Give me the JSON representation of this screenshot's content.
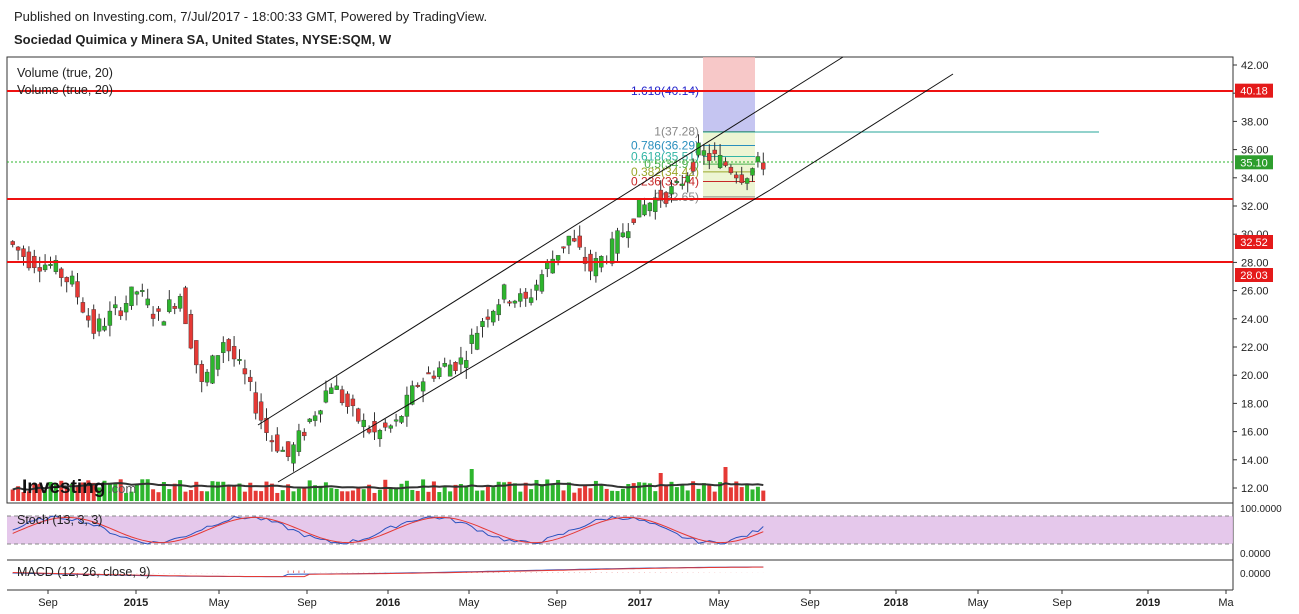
{
  "header": {
    "published": "Published on Investing.com, 7/Jul/2017 - 18:00:33 GMT, Powered by TradingView.",
    "symbol_title": "Sociedad Quimica y Minera SA, United States, NYSE:SQM, W"
  },
  "indicators": {
    "volume_label_1": "Volume (true, 20)",
    "volume_label_2": "Volume (true, 20)",
    "stoch_label": "Stoch (13, 3, 3)",
    "macd_label": "MACD (12, 26, close, 9)",
    "stoch_axis": [
      "100.0000",
      "0.0000"
    ],
    "macd_axis": "0.0000"
  },
  "watermark": {
    "brand": "Investing",
    "suffix": ".com"
  },
  "price_axis": [
    "42.00",
    "40.00",
    "38.00",
    "36.00",
    "34.00",
    "32.00",
    "30.00",
    "28.00",
    "26.00",
    "24.00",
    "22.00",
    "20.00",
    "18.00",
    "16.00",
    "14.00",
    "12.00"
  ],
  "time_axis": [
    "Sep",
    "2015",
    "May",
    "Sep",
    "2016",
    "May",
    "Sep",
    "2017",
    "May",
    "Sep",
    "2018",
    "May",
    "Sep",
    "2019",
    "Ma"
  ],
  "price_tags": [
    {
      "text": "40.18",
      "value": 40.18,
      "color": "#e41a1a"
    },
    {
      "text": "35.10",
      "value": 35.1,
      "color": "#2e9e2e"
    },
    {
      "text": "32.52",
      "value": 32.52,
      "color": "#e41a1a"
    },
    {
      "text": "28.03",
      "value": 28.03,
      "color": "#e41a1a"
    }
  ],
  "fib_labels": [
    {
      "text": "1.618(40.14)",
      "value": 40.14,
      "color": "#2222cc"
    },
    {
      "text": "1(37.28)",
      "value": 37.28,
      "color": "#888888"
    },
    {
      "text": "0.786(36.29)",
      "value": 36.29,
      "color": "#2a8fbd"
    },
    {
      "text": "0.618(35.51)",
      "value": 35.51,
      "color": "#33b5a5"
    },
    {
      "text": "0.5(34.97)",
      "value": 34.97,
      "color": "#4caf50"
    },
    {
      "text": "0.382(34.42)",
      "value": 34.42,
      "color": "#9aa62a"
    },
    {
      "text": "0.236(33.74)",
      "value": 33.74,
      "color": "#c62828"
    },
    {
      "text": "0(32.65)",
      "value": 32.65,
      "color": "#888888"
    }
  ],
  "colors": {
    "up": "#2db52d",
    "down": "#e53935",
    "stoch_bg": "#e1bee7",
    "level_line": "#ee1111"
  },
  "chart_data": {
    "type": "candlestick",
    "title": "Sociedad Quimica y Minera SA, United States, NYSE:SQM, W",
    "ylim": [
      11,
      42.5
    ],
    "horizontal_levels": [
      40.18,
      32.52,
      28.03
    ],
    "current_price": 35.1,
    "fibonacci": [
      40.14,
      37.28,
      36.29,
      35.51,
      34.97,
      34.42,
      33.74,
      32.65
    ],
    "channel_upper": [
      {
        "date": "2016-06",
        "value": 16.2
      },
      {
        "date": "2017-08",
        "value": 42.5
      }
    ],
    "channel_lower": [
      {
        "date": "2016-07",
        "value": 12.2
      },
      {
        "date": "2017-07",
        "value": 33.2
      }
    ],
    "channel_outer": [
      {
        "date": "2016-07",
        "value": 12.2
      },
      {
        "date": "2017-11",
        "value": 41.5
      }
    ],
    "close_series": [
      {
        "date": "2014-08",
        "close": 29.5
      },
      {
        "date": "2014-09",
        "close": 28.2
      },
      {
        "date": "2014-10",
        "close": 27.8
      },
      {
        "date": "2014-11",
        "close": 26.5
      },
      {
        "date": "2014-12",
        "close": 23.2
      },
      {
        "date": "2015-01",
        "close": 24.5
      },
      {
        "date": "2015-02",
        "close": 26.0
      },
      {
        "date": "2015-03",
        "close": 24.0
      },
      {
        "date": "2015-04",
        "close": 25.8
      },
      {
        "date": "2015-05",
        "close": 19.2
      },
      {
        "date": "2015-06",
        "close": 22.5
      },
      {
        "date": "2015-07",
        "close": 19.8
      },
      {
        "date": "2015-08",
        "close": 16.0
      },
      {
        "date": "2015-09",
        "close": 14.2
      },
      {
        "date": "2015-10",
        "close": 16.8
      },
      {
        "date": "2015-11",
        "close": 19.5
      },
      {
        "date": "2015-12",
        "close": 17.2
      },
      {
        "date": "2016-01",
        "close": 15.8
      },
      {
        "date": "2016-02",
        "close": 16.5
      },
      {
        "date": "2016-03",
        "close": 19.5
      },
      {
        "date": "2016-04",
        "close": 20.5
      },
      {
        "date": "2016-05",
        "close": 21.0
      },
      {
        "date": "2016-06",
        "close": 24.0
      },
      {
        "date": "2016-07",
        "close": 25.8
      },
      {
        "date": "2016-08",
        "close": 25.2
      },
      {
        "date": "2016-09",
        "close": 27.8
      },
      {
        "date": "2016-10",
        "close": 29.8
      },
      {
        "date": "2016-11",
        "close": 27.5
      },
      {
        "date": "2016-12",
        "close": 29.0
      },
      {
        "date": "2017-01",
        "close": 31.5
      },
      {
        "date": "2017-02",
        "close": 32.5
      },
      {
        "date": "2017-03",
        "close": 33.2
      },
      {
        "date": "2017-04",
        "close": 35.8
      },
      {
        "date": "2017-05",
        "close": 35.2
      },
      {
        "date": "2017-06",
        "close": 34.2
      },
      {
        "date": "2017-07",
        "close": 35.1
      }
    ]
  }
}
